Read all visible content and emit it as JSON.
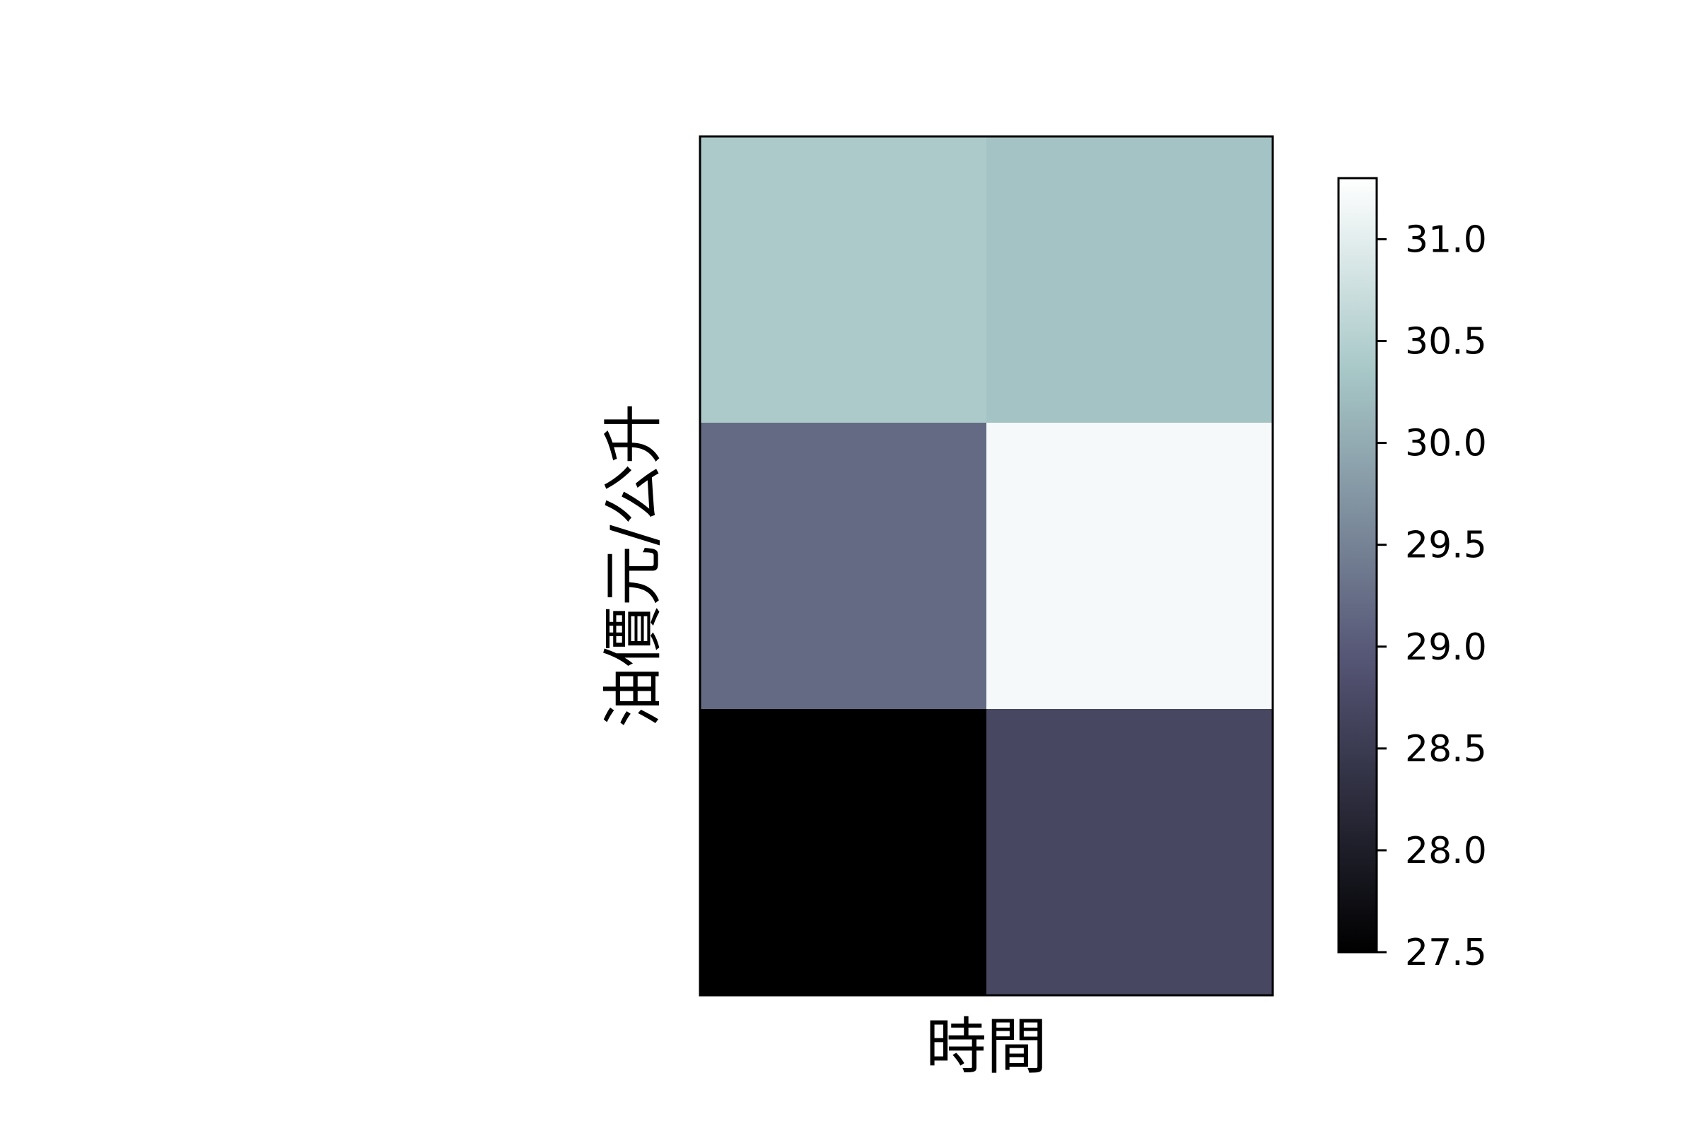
{
  "chart_data": {
    "type": "heatmap",
    "title": "",
    "xlabel": "時間",
    "ylabel": "油價元/公升",
    "rows": 3,
    "cols": 2,
    "values": [
      [
        30.4,
        30.3
      ],
      [
        29.2,
        31.2
      ],
      [
        27.5,
        28.7
      ]
    ],
    "colorbar": {
      "range": [
        27.5,
        31.3
      ],
      "ticks": [
        "27.5",
        "28.0",
        "28.5",
        "29.0",
        "29.5",
        "30.0",
        "30.5",
        "31.0"
      ],
      "colormap": "bone"
    },
    "x_ticks_visible": false,
    "y_ticks_visible": false
  }
}
